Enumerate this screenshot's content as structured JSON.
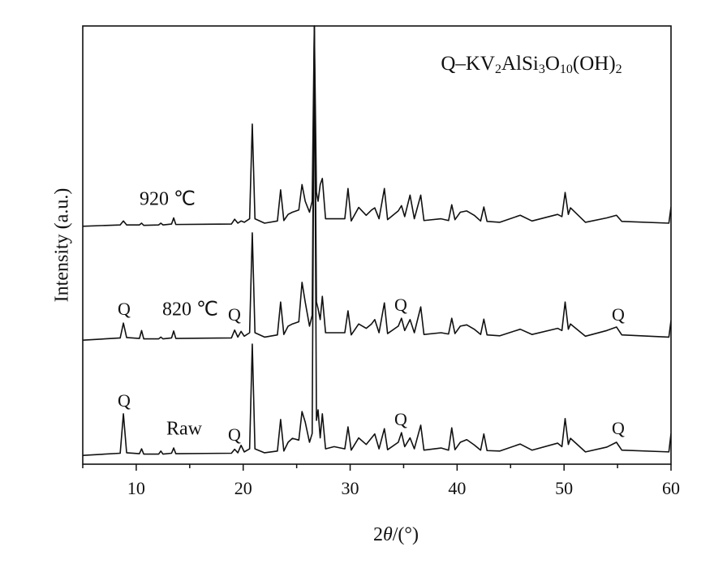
{
  "chart_data": {
    "type": "line",
    "x_label": "2θ/(°)",
    "y_label": "Intensity (a.u.)",
    "xlim": [
      5,
      60
    ],
    "ylim": [
      0,
      100
    ],
    "xticks": [
      10,
      20,
      30,
      40,
      50,
      60
    ],
    "xminorticks": [
      5,
      15,
      25,
      35,
      45,
      55
    ],
    "annotations": [
      "Q–KV2AlSi3O10(OH)2",
      "Q",
      "Q",
      "Q",
      "Q",
      "Q",
      "Q",
      "Q",
      "Q"
    ],
    "x": [
      5,
      8.5,
      8.8,
      9.1,
      10.3,
      10.5,
      10.7,
      12.1,
      12.3,
      12.5,
      13.3,
      13.5,
      13.7,
      18.9,
      19.2,
      19.5,
      19.8,
      20.1,
      20.6,
      20.85,
      21.1,
      22.0,
      23.2,
      23.5,
      23.8,
      24.2,
      24.6,
      25.2,
      25.5,
      25.8,
      26.2,
      26.45,
      26.65,
      26.85,
      27.0,
      27.2,
      27.4,
      27.7,
      28.5,
      29.5,
      29.8,
      30.1,
      30.8,
      31.5,
      32.0,
      32.3,
      32.7,
      33.2,
      33.5,
      34.5,
      34.8,
      35.1,
      35.6,
      36.0,
      36.6,
      36.9,
      38.5,
      39.2,
      39.5,
      39.8,
      40.3,
      40.9,
      41.6,
      42.2,
      42.5,
      42.8,
      44.0,
      45.9,
      47.0,
      49.4,
      49.8,
      50.1,
      50.4,
      50.6,
      52.0,
      54.0,
      54.9,
      55.4,
      59.8,
      60
    ],
    "series": [
      {
        "name": "Raw",
        "color": "#111111",
        "values": [
          2.0,
          2.5,
          11.5,
          2.6,
          2.4,
          3.5,
          2.3,
          2.3,
          3.0,
          2.3,
          2.5,
          3.7,
          2.4,
          2.5,
          3.4,
          2.6,
          4.3,
          2.8,
          3.5,
          27.4,
          3.5,
          2.6,
          3.0,
          10.2,
          3.0,
          5.0,
          5.9,
          5.5,
          12.0,
          9.6,
          5.0,
          7.0,
          100,
          10,
          12.4,
          6.0,
          11.5,
          3.5,
          4.0,
          3.5,
          8.5,
          3.2,
          6.0,
          4.5,
          6.0,
          6.9,
          3.5,
          8.1,
          3.3,
          5.0,
          7.2,
          4.0,
          6.0,
          3.5,
          8.9,
          3.2,
          3.7,
          3.2,
          8.3,
          3.3,
          5.0,
          5.6,
          4.4,
          3.2,
          6.9,
          3.1,
          3.0,
          4.6,
          3.2,
          4.8,
          4.0,
          10.4,
          4.5,
          5.9,
          2.8,
          3.9,
          5.0,
          3.2,
          2.8,
          7.0
        ]
      },
      {
        "name": "820 ℃",
        "color": "#111111",
        "values": [
          28.3,
          28.8,
          32.2,
          28.9,
          28.7,
          30.5,
          28.6,
          28.6,
          29.0,
          28.6,
          28.8,
          30.4,
          28.7,
          28.8,
          30.6,
          29.0,
          30.3,
          29.2,
          30.0,
          52.8,
          30.0,
          29.0,
          29.5,
          37.0,
          29.6,
          31.5,
          32.0,
          32.5,
          41.5,
          37.0,
          31.5,
          34.0,
          100,
          37.0,
          35.5,
          33.0,
          38.3,
          30.0,
          30.0,
          30.0,
          35.0,
          29.5,
          32.0,
          31.0,
          32.0,
          33.0,
          30.0,
          36.8,
          29.8,
          31.5,
          33.3,
          30.5,
          33.0,
          30.0,
          35.9,
          29.6,
          30.0,
          29.7,
          33.3,
          29.8,
          31.5,
          31.8,
          30.8,
          29.6,
          33.1,
          29.5,
          29.3,
          30.8,
          29.6,
          31.0,
          30.5,
          37.0,
          30.8,
          32.0,
          29.2,
          30.5,
          31.3,
          29.5,
          29.0,
          32.8
        ]
      },
      {
        "name": "920 ℃",
        "color": "#111111",
        "values": [
          54.3,
          54.6,
          55.5,
          54.6,
          54.6,
          55.0,
          54.5,
          54.6,
          55.0,
          54.6,
          54.8,
          56.2,
          54.7,
          54.8,
          55.9,
          55.0,
          55.5,
          55.2,
          56.0,
          77.6,
          56.0,
          55.0,
          55.5,
          62.6,
          55.6,
          57.0,
          57.5,
          58.0,
          63.8,
          60.0,
          57.5,
          60.0,
          100,
          62.0,
          60.0,
          63.8,
          65.2,
          56.0,
          56.0,
          56.0,
          62.9,
          55.5,
          58.6,
          56.8,
          58.0,
          58.5,
          56.0,
          62.9,
          55.8,
          57.8,
          59.0,
          56.5,
          61.4,
          56.0,
          61.4,
          55.6,
          56.0,
          55.6,
          59.2,
          55.8,
          57.5,
          57.8,
          56.8,
          55.5,
          58.7,
          55.4,
          55.2,
          56.8,
          55.5,
          57.0,
          56.5,
          62.0,
          57.0,
          58.5,
          55.2,
          56.2,
          56.8,
          55.4,
          55.0,
          58.7
        ]
      }
    ]
  }
}
